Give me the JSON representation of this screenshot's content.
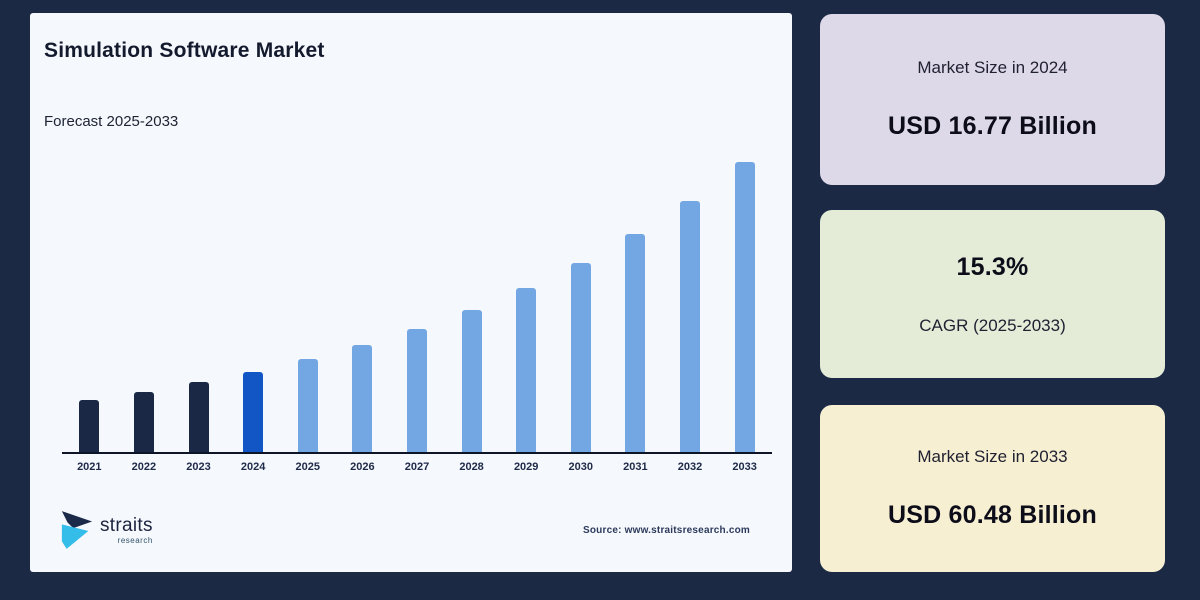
{
  "page": {
    "background_color": "#1b2945",
    "panel_color": "#f5f8fc"
  },
  "chart_panel": {
    "title": "Simulation Software Market",
    "subtitle": "Forecast 2025-2033",
    "source": "Source: www.straitsresearch.com",
    "logo": {
      "name": "straits",
      "sub": "research"
    }
  },
  "chart_data": {
    "type": "bar",
    "title": "Simulation Software Market",
    "subtitle": "Forecast 2025-2033",
    "unit": "USD Billion",
    "categories": [
      "2021",
      "2022",
      "2023",
      "2024",
      "2025",
      "2026",
      "2027",
      "2028",
      "2029",
      "2030",
      "2031",
      "2032",
      "2033"
    ],
    "values": [
      10.94,
      12.61,
      14.54,
      16.77,
      19.34,
      22.29,
      25.7,
      29.64,
      34.17,
      39.4,
      45.43,
      52.38,
      60.48
    ],
    "bar_colors": [
      "#1a2845",
      "#1a2845",
      "#1a2845",
      "#1256c6",
      "#73a7e3",
      "#73a7e3",
      "#73a7e3",
      "#73a7e3",
      "#73a7e3",
      "#73a7e3",
      "#73a7e3",
      "#73a7e3",
      "#73a7e3"
    ],
    "ylim": [
      0,
      60.48
    ],
    "xlabel": "",
    "ylabel": "",
    "grid": false,
    "legend": "none",
    "axis_color": "#0e1526",
    "notes": "Values for 2024 (16.77) and 2033 (60.48) are printed on the stat cards; other years estimated from the 15.3% CAGR; bars for 2021-2023 dark navy, 2024 royal blue, 2025-2033 light blue"
  },
  "stat_cards": [
    {
      "label": "Market Size in 2024",
      "value": "USD 16.77 Billion",
      "bg": "#ded9e8",
      "order": "label-first"
    },
    {
      "label": "CAGR (2025-2033)",
      "value": "15.3%",
      "bg": "#e4ecd8",
      "order": "value-first"
    },
    {
      "label": "Market Size in 2033",
      "value": "USD 60.48 Billion",
      "bg": "#f7efd2",
      "order": "label-first"
    }
  ],
  "colors": {
    "bar_historical": "#1a2845",
    "bar_base_year": "#1256c6",
    "bar_forecast": "#73a7e3",
    "logo_dark": "#1c2a4a",
    "logo_cyan": "#35bde9"
  }
}
